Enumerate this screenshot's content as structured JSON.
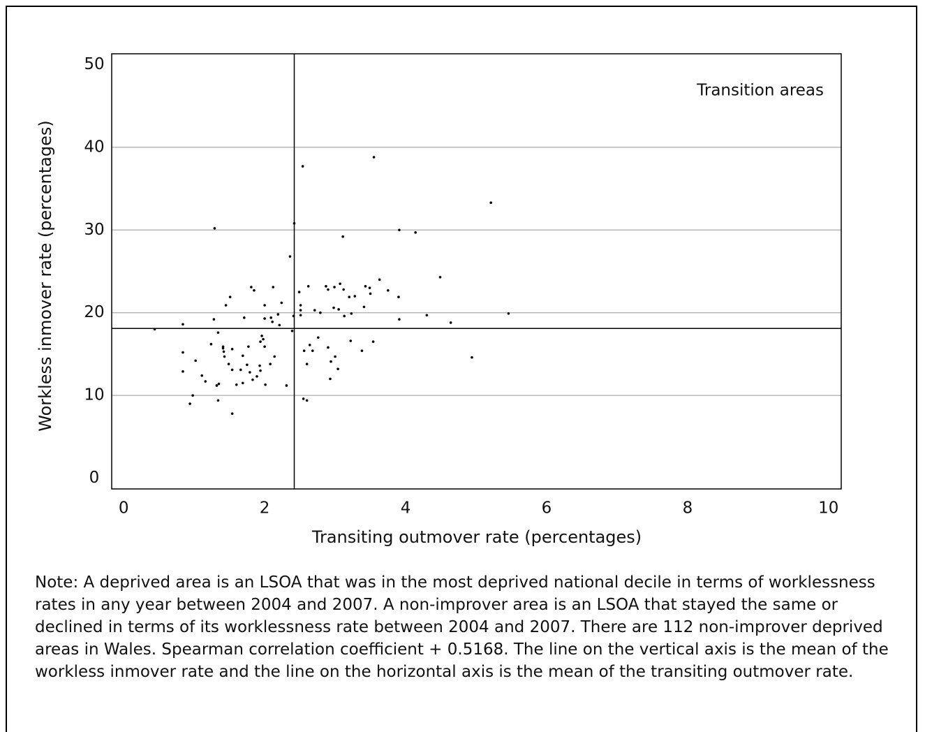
{
  "chart_data": {
    "type": "scatter",
    "x_label": "Transiting outmover rate (percentages)",
    "y_label": "Workless inmover rate (percentages)",
    "annotation": "Transition areas",
    "note": "Note: A deprived area is an LSOA that was in the most deprived national decile in terms of worklessness rates in any year between 2004 and 2007. A non-improver area is an LSOA that stayed the same or declined in terms of its worklessness rate between 2004 and 2007. There are 112 non-improver deprived areas in Wales. Spearman correlation coefficient + 0.5168. The line on the vertical axis is the mean of the workless inmover rate and the line on the horizontal axis is the mean of the transiting outmover rate.",
    "xlim": [
      -0.17,
      10.18
    ],
    "ylim": [
      -1.3,
      51.3
    ],
    "xticks": [
      0,
      2,
      4,
      6,
      8,
      10
    ],
    "yticks": [
      0,
      10,
      20,
      30,
      40,
      50
    ],
    "grid": true,
    "color": "#000000",
    "reference_lines": {
      "x": 2.42,
      "y": 18.1
    },
    "x": [
      0.44,
      0.84,
      0.84,
      0.84,
      0.98,
      0.94,
      1.02,
      1.11,
      1.16,
      1.24,
      1.29,
      1.28,
      1.34,
      1.32,
      1.35,
      1.34,
      1.41,
      1.41,
      1.42,
      1.43,
      1.45,
      1.51,
      1.49,
      1.54,
      1.54,
      1.54,
      1.6,
      1.66,
      1.69,
      1.71,
      1.69,
      1.75,
      1.77,
      1.79,
      1.81,
      1.85,
      1.83,
      1.89,
      1.93,
      1.94,
      1.94,
      1.96,
      1.98,
      2.0,
      2.0,
      2.0,
      2.01,
      2.08,
      2.09,
      2.11,
      2.12,
      2.14,
      2.19,
      2.21,
      2.24,
      2.31,
      2.36,
      2.39,
      2.41,
      2.42,
      2.49,
      2.51,
      2.51,
      2.51,
      2.54,
      2.56,
      2.55,
      2.6,
      2.6,
      2.62,
      2.64,
      2.68,
      2.71,
      2.76,
      2.79,
      2.87,
      2.9,
      2.9,
      2.93,
      2.94,
      2.98,
      2.99,
      3.0,
      3.04,
      3.05,
      3.07,
      3.11,
      3.12,
      3.13,
      3.2,
      3.22,
      3.23,
      3.28,
      3.38,
      3.41,
      3.43,
      3.49,
      3.5,
      3.54,
      3.55,
      3.63,
      3.75,
      3.91,
      3.9,
      3.91,
      4.14,
      4.3,
      4.49,
      4.64,
      4.94,
      5.21,
      5.46
    ],
    "values": [
      18.0,
      18.6,
      15.2,
      12.9,
      10.0,
      9.0,
      14.2,
      12.4,
      11.7,
      16.2,
      30.2,
      19.2,
      17.6,
      11.2,
      11.4,
      9.4,
      15.9,
      15.7,
      15.3,
      14.7,
      20.9,
      21.9,
      13.8,
      13.1,
      15.6,
      7.8,
      11.3,
      13.1,
      14.8,
      19.4,
      11.5,
      13.7,
      15.9,
      12.8,
      23.1,
      22.7,
      11.9,
      12.3,
      13.6,
      13.0,
      16.5,
      17.2,
      16.8,
      15.9,
      20.9,
      19.3,
      11.3,
      13.8,
      19.4,
      18.9,
      23.1,
      14.7,
      19.8,
      18.5,
      21.2,
      11.2,
      26.8,
      17.8,
      19.6,
      30.8,
      22.5,
      19.7,
      20.3,
      20.9,
      37.7,
      15.4,
      9.6,
      9.4,
      13.8,
      23.2,
      16.1,
      15.4,
      20.3,
      17.0,
      20.0,
      23.2,
      15.8,
      22.8,
      12.0,
      14.1,
      20.6,
      23.1,
      14.7,
      13.2,
      20.4,
      23.5,
      29.2,
      22.8,
      19.6,
      21.9,
      16.6,
      19.9,
      22.0,
      15.4,
      20.7,
      23.2,
      23.0,
      22.3,
      16.5,
      38.8,
      24.0,
      22.7,
      30.0,
      21.9,
      19.2,
      29.7,
      19.7,
      24.3,
      18.8,
      14.6,
      33.3,
      19.9
    ]
  }
}
